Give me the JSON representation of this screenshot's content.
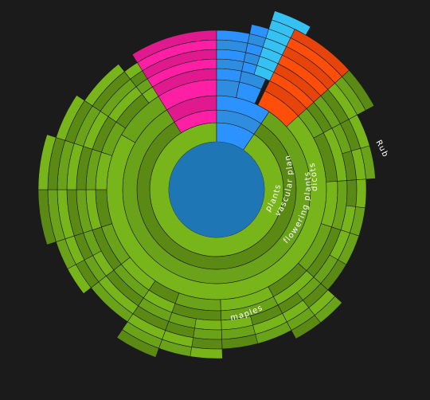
{
  "colors": {
    "background": "#1b1b1b",
    "center": "#1e76b5",
    "green_light": "#78b51b",
    "green_mid": "#6aa21a",
    "green_dark": "#5a8a14",
    "blue_bright": "#2c92ff",
    "blue_mid": "#2f8de0",
    "cyan": "#35c2f2",
    "magenta": "#ff1fa4",
    "orange": "#ff4d0a"
  },
  "labels": {
    "plants": "plants",
    "vascular": "vascular plants",
    "flowering": "flowering plants",
    "dicots": "dicots",
    "rubus": "Rubus",
    "maples": "maples"
  }
}
